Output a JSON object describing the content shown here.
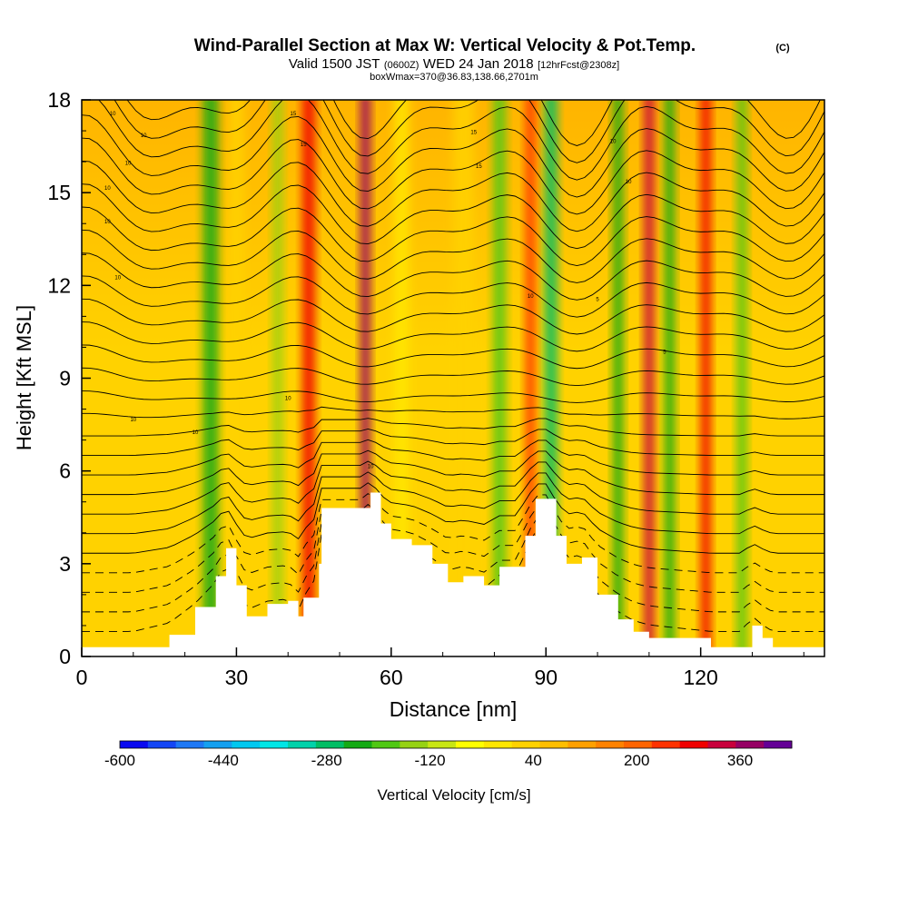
{
  "chart_data": {
    "type": "heatmap",
    "title": "Wind-Parallel Section at Max W: Vertical Velocity & Pot.Temp.",
    "title_mark": "(C)",
    "subtitle_parts": [
      "Valid 1500 JST",
      "(0600Z)",
      "WED 24 Jan 2018",
      "[12hrFcst@2308z]"
    ],
    "subtitle2": "boxWmax=370@36.83,138.66,2701m",
    "xlabel": "Distance [nm]",
    "ylabel": "Height [Kft MSL]",
    "xlim": [
      0,
      144
    ],
    "ylim": [
      0,
      18
    ],
    "x_ticks": [
      "0",
      "30",
      "60",
      "90",
      "120"
    ],
    "y_ticks": [
      "0",
      "3",
      "6",
      "9",
      "12",
      "15",
      "18"
    ],
    "colorbar": {
      "label": "Vertical Velocity [cm/s]",
      "range": [
        -600,
        440
      ],
      "tick_labels": [
        "-600",
        "-440",
        "-280",
        "-120",
        "40",
        "200",
        "360"
      ],
      "colors": [
        "#0a0af0",
        "#1446f5",
        "#1e78f5",
        "#14a0f0",
        "#00c8f0",
        "#00e6e6",
        "#00d2aa",
        "#00be64",
        "#14aa14",
        "#50c814",
        "#96d214",
        "#c8e614",
        "#ffff00",
        "#ffe600",
        "#ffd200",
        "#ffbe00",
        "#ffa000",
        "#ff8200",
        "#ff6400",
        "#ff3200",
        "#f00000",
        "#c8003c",
        "#960064",
        "#640096"
      ]
    },
    "velocity_bands": [
      {
        "x": 25,
        "w": 3,
        "v": -240
      },
      {
        "x": 30,
        "w": 3,
        "v": 20
      },
      {
        "x": 38,
        "w": 2,
        "v": -160
      },
      {
        "x": 44,
        "w": 2.5,
        "v": 300
      },
      {
        "x": 55,
        "w": 2,
        "v": 380
      },
      {
        "x": 62,
        "w": 3,
        "v": 0
      },
      {
        "x": 74,
        "w": 4,
        "v": 40
      },
      {
        "x": 81,
        "w": 2.5,
        "v": -200
      },
      {
        "x": 87,
        "w": 2,
        "v": 240
      },
      {
        "x": 91,
        "w": 2.5,
        "v": -280
      },
      {
        "x": 104,
        "w": 2,
        "v": -240
      },
      {
        "x": 110,
        "w": 2,
        "v": 340
      },
      {
        "x": 114,
        "w": 2,
        "v": -220
      },
      {
        "x": 121,
        "w": 2,
        "v": 280
      },
      {
        "x": 128,
        "w": 2,
        "v": -200
      }
    ],
    "terrain": [
      [
        0,
        0.3
      ],
      [
        10,
        0.3
      ],
      [
        17,
        0.7
      ],
      [
        22,
        1.6
      ],
      [
        26,
        2.6
      ],
      [
        28,
        3.5
      ],
      [
        30,
        2.3
      ],
      [
        32,
        1.3
      ],
      [
        36,
        1.7
      ],
      [
        40,
        1.8
      ],
      [
        42,
        1.3
      ],
      [
        43,
        1.9
      ],
      [
        46,
        3.0
      ],
      [
        46.5,
        4.8
      ],
      [
        51,
        4.8
      ],
      [
        54,
        4.8
      ],
      [
        56,
        5.3
      ],
      [
        58,
        4.3
      ],
      [
        60,
        3.8
      ],
      [
        64,
        3.6
      ],
      [
        68,
        3.0
      ],
      [
        71,
        2.4
      ],
      [
        74,
        2.6
      ],
      [
        78,
        2.3
      ],
      [
        81,
        2.9
      ],
      [
        84,
        2.9
      ],
      [
        86,
        3.9
      ],
      [
        88,
        5.1
      ],
      [
        90,
        5.1
      ],
      [
        92,
        3.9
      ],
      [
        94,
        3.0
      ],
      [
        97,
        3.2
      ],
      [
        100,
        2.0
      ],
      [
        104,
        1.2
      ],
      [
        107,
        0.8
      ],
      [
        110,
        0.6
      ],
      [
        122,
        0.3
      ],
      [
        128,
        0.3
      ],
      [
        130,
        1.0
      ],
      [
        132,
        0.6
      ],
      [
        134,
        0.3
      ],
      [
        144,
        0.3
      ]
    ],
    "isentrope_labels": [
      "10",
      "10",
      "10",
      "15",
      "15",
      "15",
      "15",
      "10",
      "10",
      "10",
      "10",
      "10",
      "10",
      "10",
      "10",
      "10",
      "10",
      "5",
      "5"
    ]
  }
}
